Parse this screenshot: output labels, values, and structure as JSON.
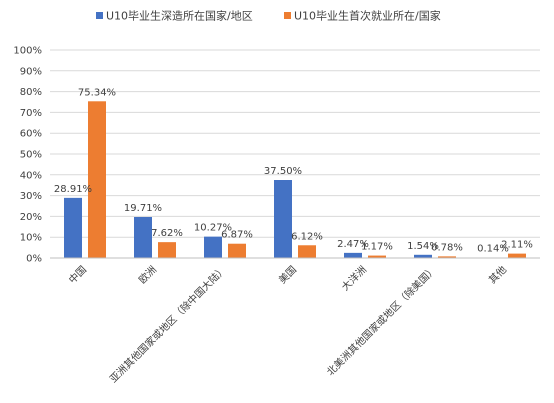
{
  "chart_data": {
    "type": "bar",
    "categories": [
      "中国",
      "欧洲",
      "亚洲其他国家或地区（除中国大陆）",
      "美国",
      "大洋洲",
      "北美洲其他国家或地区（除美国）",
      "其他"
    ],
    "series": [
      {
        "name": "U10毕业生深造所在国家/地区",
        "color": "#4472c4",
        "values": [
          28.91,
          19.71,
          10.27,
          37.5,
          2.47,
          1.54,
          0.14
        ],
        "labels": [
          "28.91%",
          "19.71%",
          "10.27%",
          "37.50%",
          "2.47%",
          "1.54%",
          "0.14%"
        ]
      },
      {
        "name": "U10毕业生首次就业所在/国家",
        "color": "#ed7d31",
        "values": [
          75.34,
          7.62,
          6.87,
          6.12,
          1.17,
          0.78,
          2.11
        ],
        "labels": [
          "75.34%",
          "7.62%",
          "6.87%",
          "6.12%",
          "1.17%",
          "0.78%",
          "2.11%"
        ]
      }
    ],
    "y_ticks": [
      "0%",
      "10%",
      "20%",
      "30%",
      "40%",
      "50%",
      "60%",
      "70%",
      "80%",
      "90%",
      "100%"
    ],
    "ylim": [
      0,
      100
    ],
    "grid": true,
    "legend_position": "top-center"
  }
}
